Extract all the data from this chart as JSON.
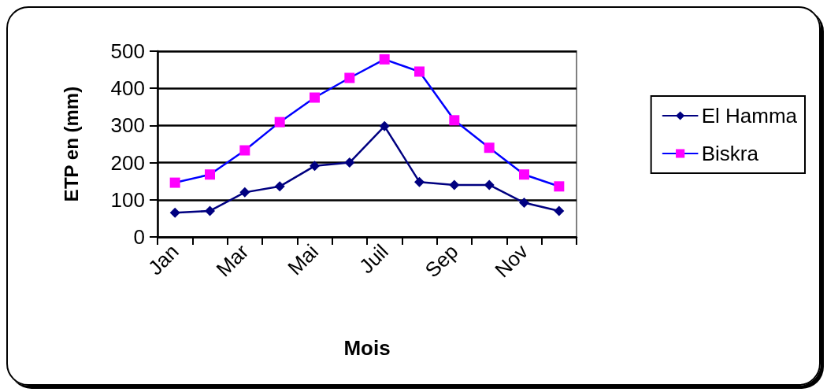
{
  "chart_data": {
    "type": "line",
    "xlabel": "Mois",
    "ylabel": "ETP en (mm)",
    "categories": [
      "Jan",
      null,
      "Mar",
      null,
      "Mai",
      null,
      "Juil",
      null,
      "Sep",
      null,
      "Nov",
      null
    ],
    "series": [
      {
        "name": "El Hamma",
        "color": "#000080",
        "marker": "diamond",
        "values": [
          65,
          70,
          120,
          136,
          191,
          200,
          298,
          148,
          140,
          140,
          92,
          70
        ]
      },
      {
        "name": "Biskra",
        "color": "#0000ff",
        "colors": [
          "#ff00ff",
          "#ff00ff",
          "#ff00ff",
          "#ff00ff",
          "#ff00ff",
          "#ff00ff",
          "#ff00ff",
          "#ff00ff",
          "#ff00ff",
          "#ff00ff",
          "#ff00ff",
          "#ff00ff"
        ],
        "marker": "square",
        "values": [
          146,
          168,
          233,
          309,
          375,
          428,
          478,
          445,
          314,
          240,
          168,
          136
        ]
      }
    ],
    "ylim": [
      0,
      500
    ],
    "yticks": [
      0,
      100,
      200,
      300,
      400,
      500
    ],
    "grid": "y",
    "legend": "right",
    "line_style": "solid"
  }
}
